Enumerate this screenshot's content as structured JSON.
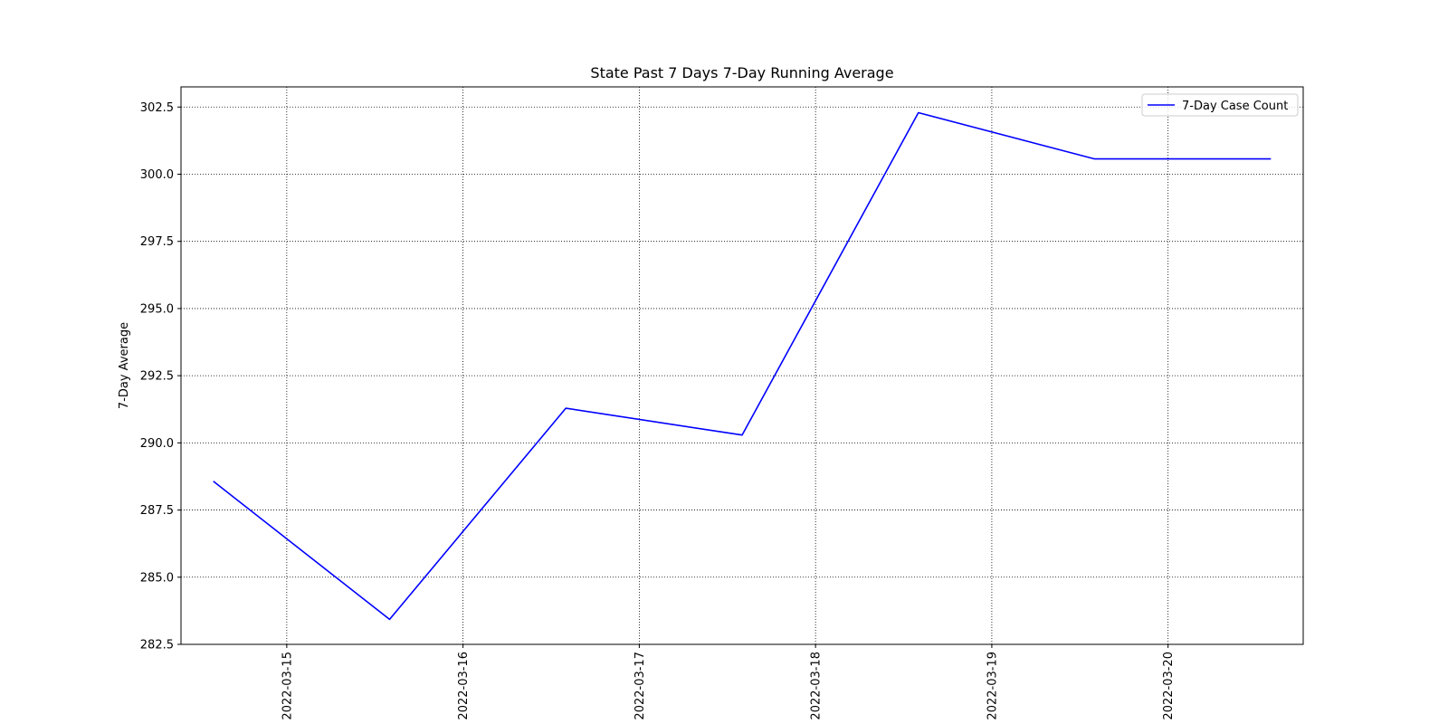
{
  "chart_data": {
    "type": "line",
    "title": "State Past 7 Days 7-Day Running Average",
    "xlabel": "",
    "ylabel": "7-Day Average",
    "x": [
      "2022-03-14T14:00",
      "2022-03-15T14:00",
      "2022-03-16T14:00",
      "2022-03-17T14:00",
      "2022-03-18T14:00",
      "2022-03-19T14:00",
      "2022-03-20T14:00"
    ],
    "series": [
      {
        "name": "7-Day Case Count",
        "color": "#0000ff",
        "values": [
          288.57,
          283.43,
          291.29,
          290.29,
          302.29,
          300.57,
          300.57
        ]
      }
    ],
    "xticks": [
      "2022-03-15",
      "2022-03-16",
      "2022-03-17",
      "2022-03-18",
      "2022-03-19",
      "2022-03-20"
    ],
    "yticks": [
      "282.5",
      "285.0",
      "287.5",
      "290.0",
      "292.5",
      "295.0",
      "297.5",
      "300.0",
      "302.5"
    ],
    "ylim": [
      282.5,
      303.25
    ],
    "xlim": [
      "2022-03-14T09:36",
      "2022-03-20T18:24"
    ],
    "grid": true,
    "grid_style": "dotted",
    "legend_position": "upper right"
  }
}
